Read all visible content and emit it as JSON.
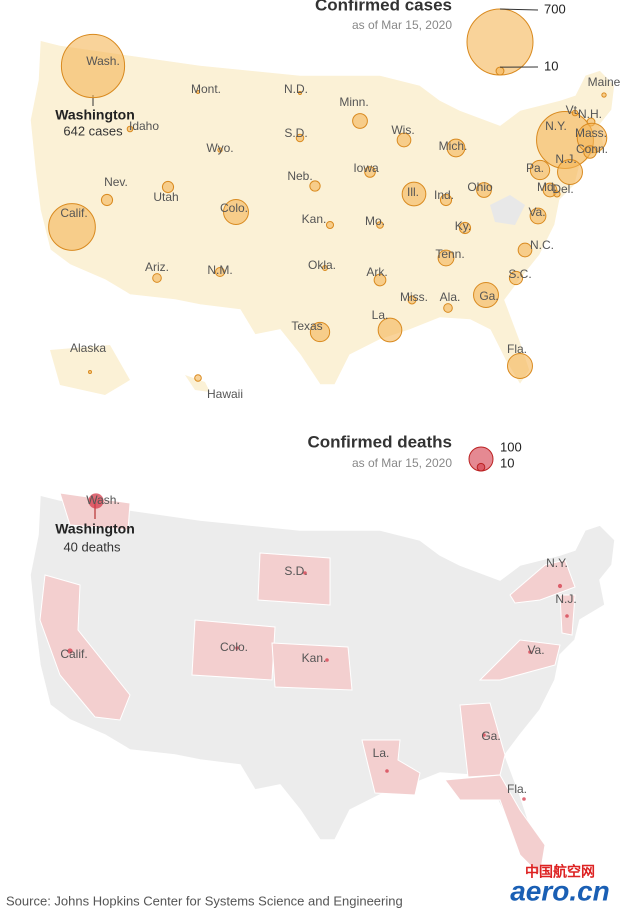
{
  "cases_map": {
    "title": "Confirmed cases",
    "subtitle": "as of Mar 15, 2020",
    "legend": [
      700,
      10
    ],
    "callout": {
      "state": "Washington",
      "text": "642 cases"
    },
    "states": [
      {
        "label": "Wash.",
        "cases": 642
      },
      {
        "label": "Mont.",
        "cases": 1
      },
      {
        "label": "N.D.",
        "cases": 1
      },
      {
        "label": "Minn.",
        "cases": 35
      },
      {
        "label": "Wis.",
        "cases": 30
      },
      {
        "label": "Mich.",
        "cases": 50
      },
      {
        "label": "N.Y.",
        "cases": 520
      },
      {
        "label": "Vt.",
        "cases": 5
      },
      {
        "label": "N.H.",
        "cases": 10
      },
      {
        "label": "Maine",
        "cases": 3
      },
      {
        "label": "Mass.",
        "cases": 140
      },
      {
        "label": "Conn.",
        "cases": 25
      },
      {
        "label": "Pa.",
        "cases": 60
      },
      {
        "label": "N.J.",
        "cases": 100
      },
      {
        "label": "Md.",
        "cases": 30
      },
      {
        "label": "Del.",
        "cases": 6
      },
      {
        "label": "Va.",
        "cases": 40
      },
      {
        "label": "Idaho",
        "cases": 5
      },
      {
        "label": "Wyo.",
        "cases": 3
      },
      {
        "label": "S.D.",
        "cases": 9
      },
      {
        "label": "Iowa",
        "cases": 18
      },
      {
        "label": "Neb.",
        "cases": 17
      },
      {
        "label": "Ill.",
        "cases": 90
      },
      {
        "label": "Ind.",
        "cases": 20
      },
      {
        "label": "Ohio",
        "cases": 35
      },
      {
        "label": "Nev.",
        "cases": 20
      },
      {
        "label": "Utah",
        "cases": 20
      },
      {
        "label": "Colo.",
        "cases": 100
      },
      {
        "label": "Kan.",
        "cases": 8
      },
      {
        "label": "Mo.",
        "cases": 7
      },
      {
        "label": "Ky.",
        "cases": 20
      },
      {
        "label": "Calif.",
        "cases": 350
      },
      {
        "label": "N.C.",
        "cases": 30
      },
      {
        "label": "Tenn.",
        "cases": 40
      },
      {
        "label": "Ariz.",
        "cases": 12
      },
      {
        "label": "N.M.",
        "cases": 13
      },
      {
        "label": "Okla.",
        "cases": 4
      },
      {
        "label": "Ark.",
        "cases": 22
      },
      {
        "label": "S.C.",
        "cases": 28
      },
      {
        "label": "Miss.",
        "cases": 10
      },
      {
        "label": "Ala.",
        "cases": 12
      },
      {
        "label": "Ga.",
        "cases": 100
      },
      {
        "label": "Texas",
        "cases": 60
      },
      {
        "label": "La.",
        "cases": 90
      },
      {
        "label": "Fla.",
        "cases": 100
      },
      {
        "label": "Alaska",
        "cases": 1
      },
      {
        "label": "Hawaii",
        "cases": 7
      }
    ]
  },
  "deaths_map": {
    "title": "Confirmed deaths",
    "subtitle": "as of Mar 15, 2020",
    "legend": [
      100,
      10
    ],
    "callout": {
      "state": "Washington",
      "text": "40 deaths"
    },
    "states": [
      {
        "label": "Wash.",
        "deaths": 40
      },
      {
        "label": "Calif.",
        "deaths": 5
      },
      {
        "label": "Colo.",
        "deaths": 1
      },
      {
        "label": "Kan.",
        "deaths": 1
      },
      {
        "label": "S.D.",
        "deaths": 1
      },
      {
        "label": "La.",
        "deaths": 1
      },
      {
        "label": "Ga.",
        "deaths": 1
      },
      {
        "label": "Fla.",
        "deaths": 2
      },
      {
        "label": "Va.",
        "deaths": 1
      },
      {
        "label": "N.Y.",
        "deaths": 3
      },
      {
        "label": "N.J.",
        "deaths": 2
      }
    ]
  },
  "source": "Source: Johns Hopkins Center for Systems Science and Engineering",
  "watermark": {
    "cn": "中国航空网",
    "en": "aero.cn"
  }
}
